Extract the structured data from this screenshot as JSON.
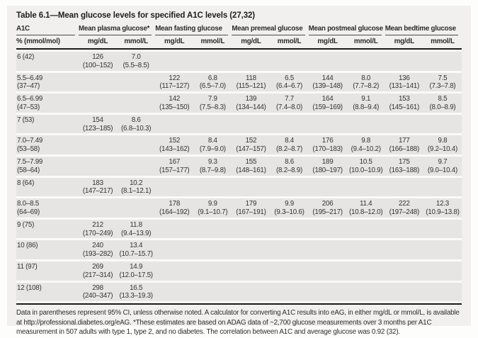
{
  "table": {
    "title": "Table 6.1—Mean glucose levels for specified A1C levels (27,32)",
    "groups": [
      {
        "label": "A1C",
        "sub": [
          "% (mmol/mol)"
        ]
      },
      {
        "label": "Mean plasma glucose*",
        "sub": [
          "mg/dL",
          "mmol/L"
        ]
      },
      {
        "label": "Mean fasting glucose",
        "sub": [
          "mg/dL",
          "mmol/L"
        ]
      },
      {
        "label": "Mean premeal glucose",
        "sub": [
          "mg/dL",
          "mmol/L"
        ]
      },
      {
        "label": "Mean postmeal glucose",
        "sub": [
          "mg/dL",
          "mmol/L"
        ]
      },
      {
        "label": "Mean bedtime glucose",
        "sub": [
          "mg/dL",
          "mmol/L"
        ]
      }
    ],
    "rows": [
      {
        "a1c": "6 (42)",
        "a1c_ci": "",
        "cells": [
          [
            "126",
            "(100–152)"
          ],
          [
            "7.0",
            "(5.5–8.5)"
          ],
          null,
          null,
          null,
          null,
          null,
          null,
          null,
          null
        ]
      },
      {
        "a1c": "5.5–6.49",
        "a1c_ci": "(37–47)",
        "cells": [
          null,
          null,
          [
            "122",
            "(117–127)"
          ],
          [
            "6.8",
            "(6.5–7.0)"
          ],
          [
            "118",
            "(115–121)"
          ],
          [
            "6.5",
            "(6.4–6.7)"
          ],
          [
            "144",
            "(139–148)"
          ],
          [
            "8.0",
            "(7.7–8.2)"
          ],
          [
            "136",
            "(131–141)"
          ],
          [
            "7.5",
            "(7.3–7.8)"
          ]
        ]
      },
      {
        "a1c": "6.5–6.99",
        "a1c_ci": "(47–53)",
        "cells": [
          null,
          null,
          [
            "142",
            "(135–150)"
          ],
          [
            "7.9",
            "(7.5–8.3)"
          ],
          [
            "139",
            "(134–144)"
          ],
          [
            "7.7",
            "(7.4–8.0)"
          ],
          [
            "164",
            "(159–169)"
          ],
          [
            "9.1",
            "(8.8–9.4)"
          ],
          [
            "153",
            "(145–161)"
          ],
          [
            "8.5",
            "(8.0–8.9)"
          ]
        ]
      },
      {
        "a1c": "7 (53)",
        "a1c_ci": "",
        "cells": [
          [
            "154",
            "(123–185)"
          ],
          [
            "8.6",
            "(6.8–10.3)"
          ],
          null,
          null,
          null,
          null,
          null,
          null,
          null,
          null
        ]
      },
      {
        "a1c": "7.0–7.49",
        "a1c_ci": "(53–58)",
        "cells": [
          null,
          null,
          [
            "152",
            "(143–162)"
          ],
          [
            "8.4",
            "(7.9–9.0)"
          ],
          [
            "152",
            "(147–157)"
          ],
          [
            "8.4",
            "(8.2–8.7)"
          ],
          [
            "176",
            "(170–183)"
          ],
          [
            "9.8",
            "(9.4–10.2)"
          ],
          [
            "177",
            "(166–188)"
          ],
          [
            "9.8",
            "(9.2–10.4)"
          ]
        ]
      },
      {
        "a1c": "7.5–7.99",
        "a1c_ci": "(58–64)",
        "cells": [
          null,
          null,
          [
            "167",
            "(157–177)"
          ],
          [
            "9.3",
            "(8.7–9.8)"
          ],
          [
            "155",
            "(148–161)"
          ],
          [
            "8.6",
            "(8.2–8.9)"
          ],
          [
            "189",
            "(180–197)"
          ],
          [
            "10.5",
            "(10.0–10.9)"
          ],
          [
            "175",
            "(163–188)"
          ],
          [
            "9.7",
            "(9.0–10.4)"
          ]
        ]
      },
      {
        "a1c": "8 (64)",
        "a1c_ci": "",
        "cells": [
          [
            "183",
            "(147–217)"
          ],
          [
            "10.2",
            "(8.1–12.1)"
          ],
          null,
          null,
          null,
          null,
          null,
          null,
          null,
          null
        ]
      },
      {
        "a1c": "8.0–8.5",
        "a1c_ci": "(64–69)",
        "cells": [
          null,
          null,
          [
            "178",
            "(164–192)"
          ],
          [
            "9.9",
            "(9.1–10.7)"
          ],
          [
            "179",
            "(167–191)"
          ],
          [
            "9.9",
            "(9.3–10.6)"
          ],
          [
            "206",
            "(195–217)"
          ],
          [
            "11.4",
            "(10.8–12.0)"
          ],
          [
            "222",
            "(197–248)"
          ],
          [
            "12.3",
            "(10.9–13.8)"
          ]
        ]
      },
      {
        "a1c": "9 (75)",
        "a1c_ci": "",
        "cells": [
          [
            "212",
            "(170–249)"
          ],
          [
            "11.8",
            "(9.4–13.9)"
          ],
          null,
          null,
          null,
          null,
          null,
          null,
          null,
          null
        ]
      },
      {
        "a1c": "10 (86)",
        "a1c_ci": "",
        "cells": [
          [
            "240",
            "(193–282)"
          ],
          [
            "13.4",
            "(10.7–15.7)"
          ],
          null,
          null,
          null,
          null,
          null,
          null,
          null,
          null
        ]
      },
      {
        "a1c": "11 (97)",
        "a1c_ci": "",
        "cells": [
          [
            "269",
            "(217–314)"
          ],
          [
            "14.9",
            "(12.0–17.5)"
          ],
          null,
          null,
          null,
          null,
          null,
          null,
          null,
          null
        ]
      },
      {
        "a1c": "12 (108)",
        "a1c_ci": "",
        "cells": [
          [
            "298",
            "(240–347)"
          ],
          [
            "16.5",
            "(13.3–19.3)"
          ],
          null,
          null,
          null,
          null,
          null,
          null,
          null,
          null
        ]
      }
    ],
    "footnote": "Data in parentheses represent 95% CI, unless otherwise noted. A calculator for converting A1C results into eAG, in either mg/dL or mmol/L, is available at http://professional.diabetes.org/eAG. *These estimates are based on ADAG data of ~2,700 glucose measurements over 3 months per A1C measurement in 507 adults with type 1, type 2, and no diabetes. The correlation between A1C and average glucose was 0.92 (32)."
  },
  "colors": {
    "row_stripe": "#e6e5e3",
    "card_background": "#f1f0ee",
    "rule": "#1b1b1b",
    "text": "#333333"
  }
}
